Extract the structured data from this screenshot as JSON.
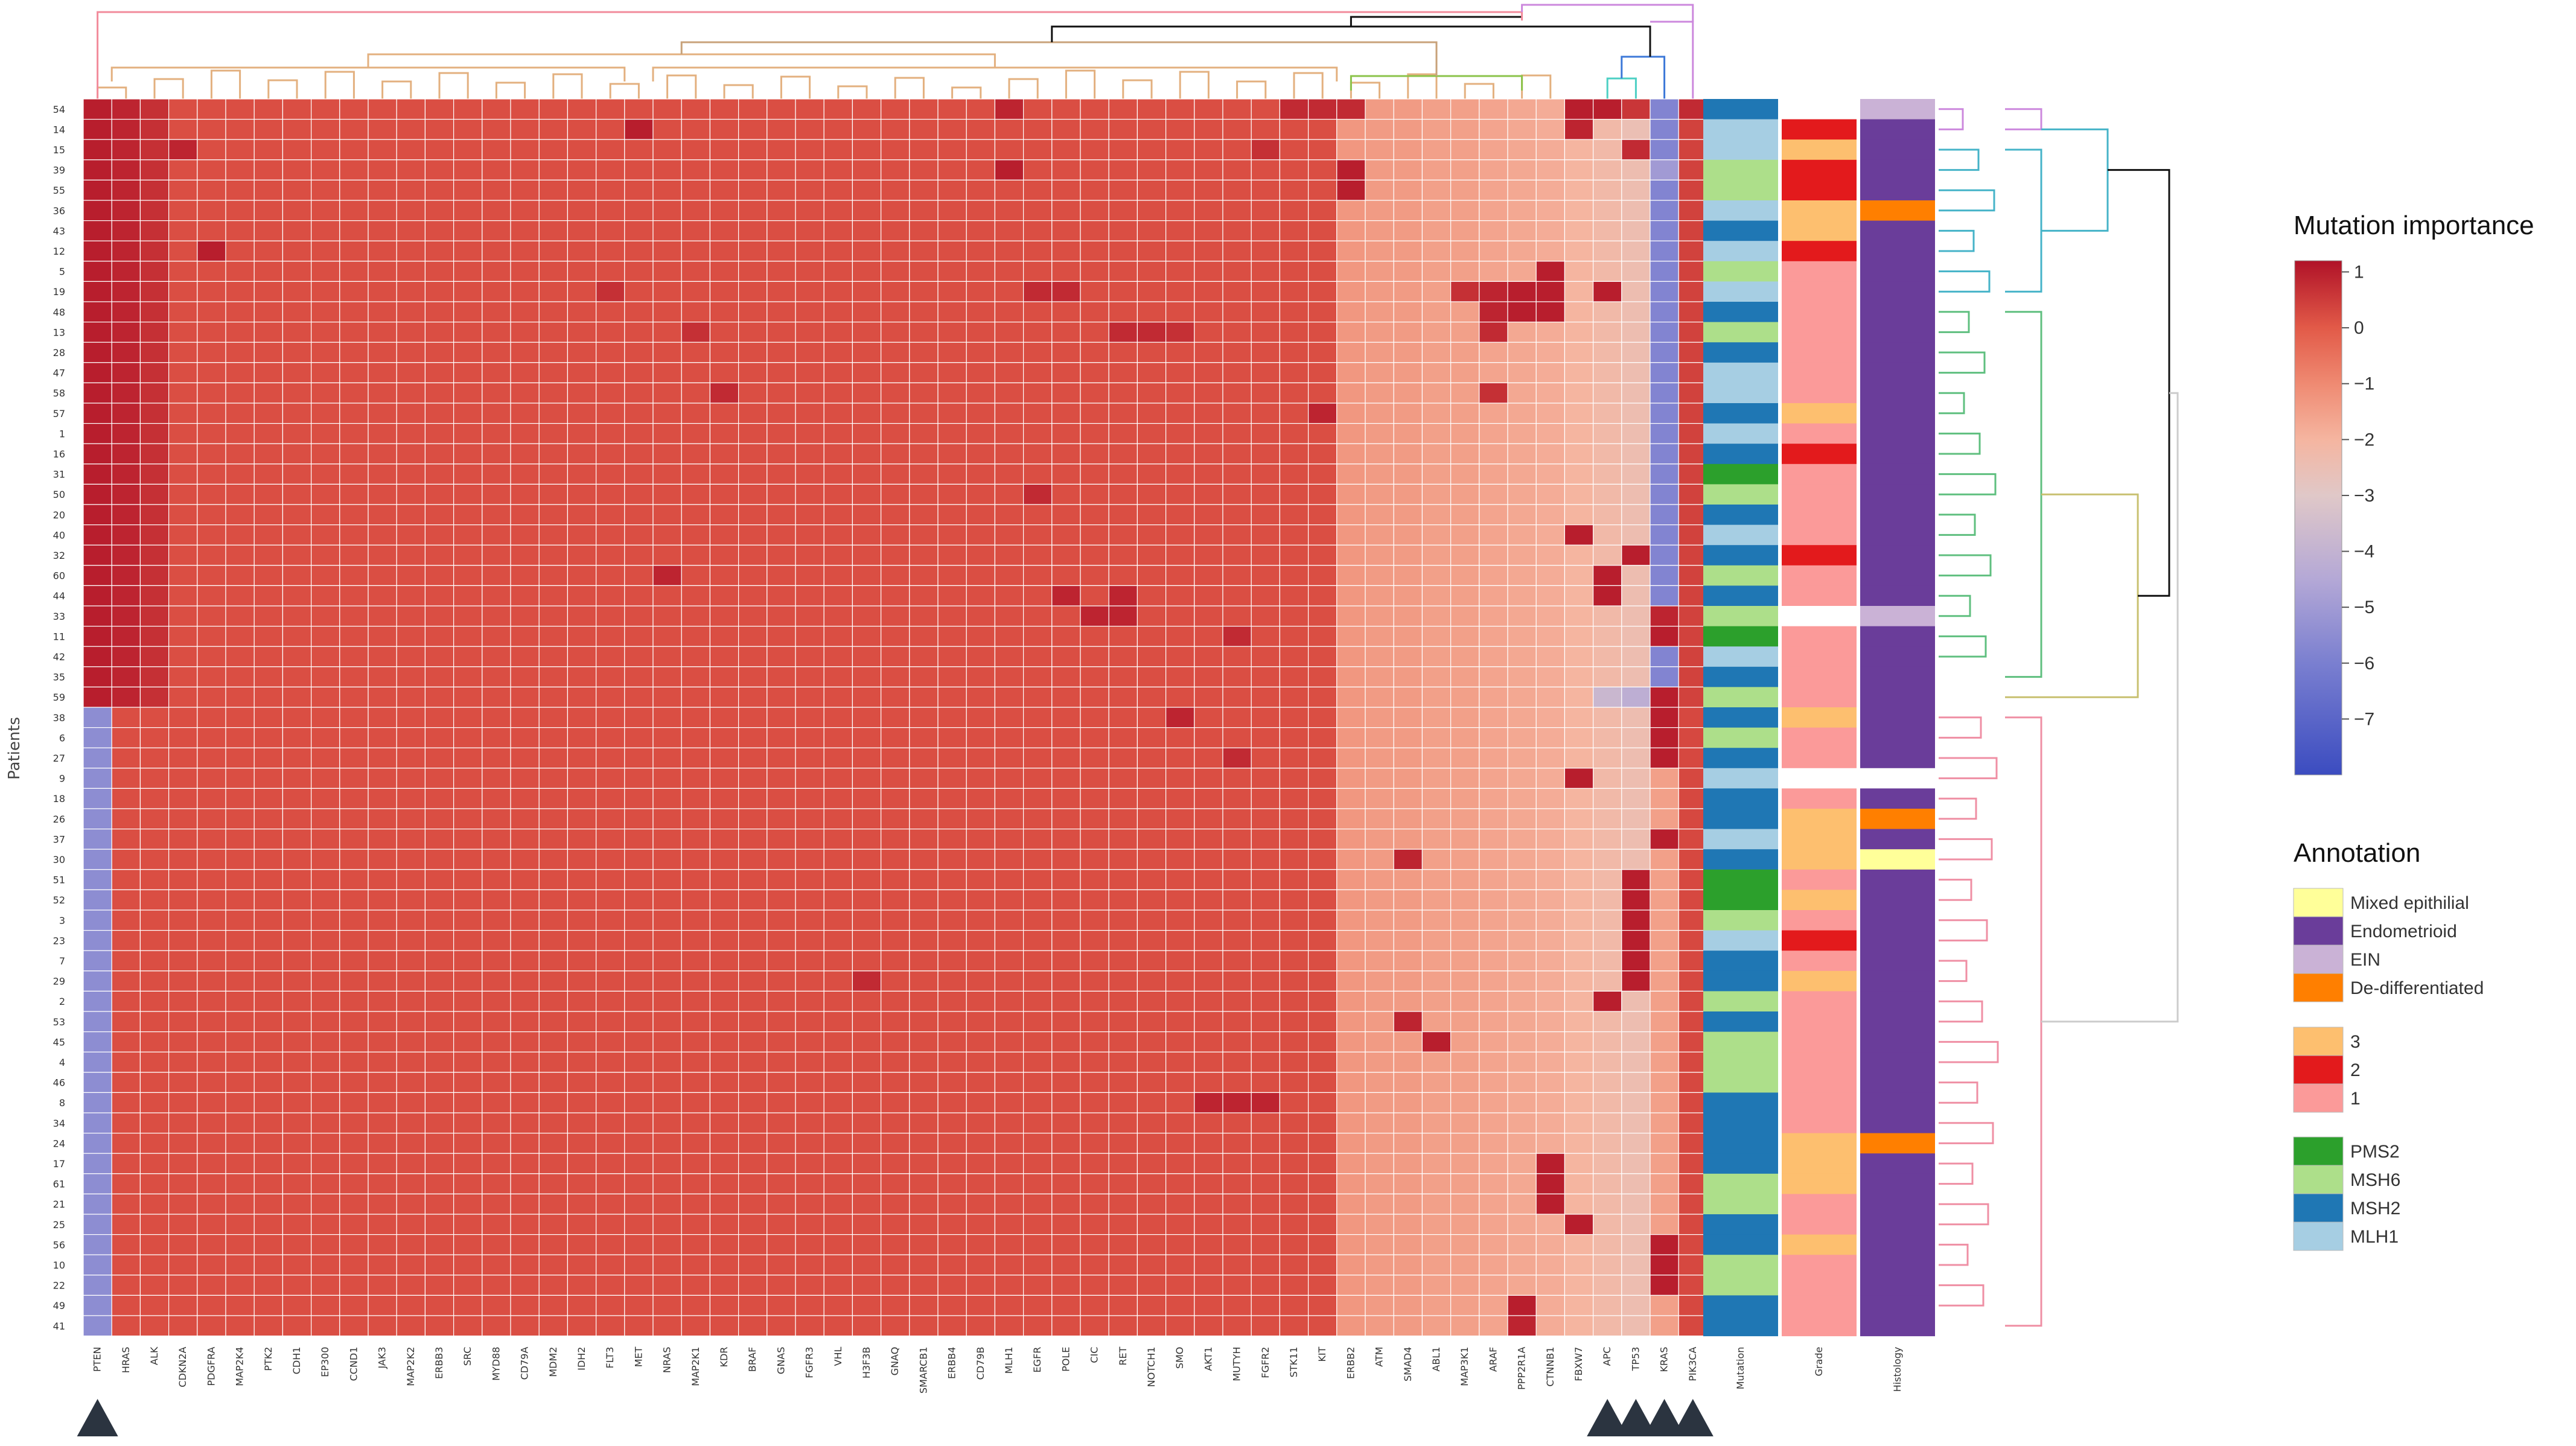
{
  "chart_data": {
    "type": "heatmap",
    "title": "",
    "ylabel": "Patients",
    "xlabel": "",
    "genes": [
      "PTEN",
      "HRAS",
      "ALK",
      "CDKN2A",
      "PDGFRA",
      "MAP2K4",
      "PTK2",
      "CDH1",
      "EP300",
      "CCND1",
      "JAK3",
      "MAP2K2",
      "ERBB3",
      "SRC",
      "MYD88",
      "CD79A",
      "MDM2",
      "IDH2",
      "FLT3",
      "MET",
      "NRAS",
      "MAP2K1",
      "KDR",
      "BRAF",
      "GNAS",
      "FGFR3",
      "VHL",
      "H3F3B",
      "GNAQ",
      "SMARCB1",
      "ERBB4",
      "CD79B",
      "MLH1",
      "EGFR",
      "POLE",
      "CIC",
      "RET",
      "NOTCH1",
      "SMO",
      "AKT1",
      "MUTYH",
      "FGFR2",
      "STK11",
      "KIT",
      "ERBB2",
      "ATM",
      "SMAD4",
      "ABL1",
      "MAP3K1",
      "ARAF",
      "PPP2R1A",
      "CTNNB1",
      "FBXW7",
      "APC",
      "TP53",
      "KRAS",
      "PIK3CA"
    ],
    "annotation_columns": [
      "Mutation",
      "Grade",
      "Histology"
    ],
    "patients": [
      "54",
      "14",
      "15",
      "39",
      "55",
      "36",
      "43",
      "12",
      "5",
      "19",
      "48",
      "13",
      "28",
      "47",
      "58",
      "57",
      "1",
      "16",
      "31",
      "50",
      "20",
      "40",
      "32",
      "60",
      "44",
      "33",
      "11",
      "42",
      "35",
      "59",
      "38",
      "6",
      "27",
      "9",
      "18",
      "26",
      "37",
      "30",
      "51",
      "52",
      "3",
      "23",
      "7",
      "29",
      "2",
      "53",
      "45",
      "4",
      "46",
      "8",
      "34",
      "24",
      "17",
      "61",
      "21",
      "25",
      "56",
      "10",
      "22",
      "49",
      "41"
    ],
    "colorbar": {
      "title": "Mutation importance",
      "range": [
        -8,
        1.2
      ],
      "ticks": [
        1,
        0,
        -1,
        -2,
        -3,
        -4,
        -5,
        -6,
        -7
      ],
      "tick_labels": [
        "1",
        "0",
        "−1",
        "−2",
        "−3",
        "−4",
        "−5",
        "−6",
        "−7"
      ],
      "colorscale": [
        [
          -8,
          "#3b4cc0"
        ],
        [
          -6,
          "#7a7fd0"
        ],
        [
          -4.5,
          "#b4a8d6"
        ],
        [
          -3,
          "#e0c8c8"
        ],
        [
          -2,
          "#f5b5a0"
        ],
        [
          -1,
          "#ef8a72"
        ],
        [
          0,
          "#e25a48"
        ],
        [
          1.2,
          "#b01228"
        ]
      ]
    },
    "colors": {
      "mutation": {
        "PMS2": "#2ca02c",
        "MSH6": "#addf8a",
        "MSH2": "#1f77b4",
        "MLH1": "#a6cee3"
      },
      "grade": {
        "3": "#fdbf6f",
        "2": "#e31a1c",
        "1": "#fb9a99"
      },
      "histology": {
        "Mixed epithilial": "#ffff99",
        "Endometrioid": "#6a3d9a",
        "EIN": "#cab2d6",
        "De-differentiated": "#ff7f00"
      },
      "missing": "#ffffff"
    },
    "mutation": [
      "MSH2",
      "MLH1",
      "MLH1",
      "MSH6",
      "MSH6",
      "MLH1",
      "MSH2",
      "MLH1",
      "MSH6",
      "MLH1",
      "MSH2",
      "MSH6",
      "MSH2",
      "MLH1",
      "MLH1",
      "MSH2",
      "MLH1",
      "MSH2",
      "PMS2",
      "MSH6",
      "MSH2",
      "MLH1",
      "MSH2",
      "MSH6",
      "MSH2",
      "MSH6",
      "PMS2",
      "MLH1",
      "MSH2",
      "MSH6",
      "MSH2",
      "MSH6",
      "MSH2",
      "MLH1",
      "MSH2",
      "MSH2",
      "MLH1",
      "MSH2",
      "PMS2",
      "PMS2",
      "MSH6",
      "MLH1",
      "MSH2",
      "MSH2",
      "MSH6",
      "MSH2",
      "MSH6",
      "MSH6",
      "MSH6",
      "MSH2",
      "MSH2",
      "MSH2",
      "MSH2",
      "MSH6",
      "MSH6",
      "MSH2",
      "MSH2",
      "MSH6",
      "MSH6",
      "MSH2",
      "MSH2"
    ],
    "grade": [
      "",
      "2",
      "3",
      "2",
      "2",
      "3",
      "3",
      "2",
      "1",
      "1",
      "1",
      "1",
      "1",
      "1",
      "1",
      "3",
      "1",
      "2",
      "1",
      "1",
      "1",
      "1",
      "2",
      "1",
      "1",
      "",
      "1",
      "1",
      "1",
      "1",
      "3",
      "1",
      "1",
      "",
      "1",
      "3",
      "3",
      "3",
      "1",
      "3",
      "1",
      "2",
      "1",
      "3",
      "1",
      "1",
      "1",
      "1",
      "1",
      "1",
      "1",
      "3",
      "3",
      "3",
      "1",
      "1",
      "3",
      "1",
      "1",
      "1",
      "1"
    ],
    "histology": [
      "EIN",
      "Endometrioid",
      "Endometrioid",
      "Endometrioid",
      "Endometrioid",
      "De-differentiated",
      "Endometrioid",
      "Endometrioid",
      "Endometrioid",
      "Endometrioid",
      "Endometrioid",
      "Endometrioid",
      "Endometrioid",
      "Endometrioid",
      "Endometrioid",
      "Endometrioid",
      "Endometrioid",
      "Endometrioid",
      "Endometrioid",
      "Endometrioid",
      "Endometrioid",
      "Endometrioid",
      "Endometrioid",
      "Endometrioid",
      "Endometrioid",
      "EIN",
      "Endometrioid",
      "Endometrioid",
      "Endometrioid",
      "Endometrioid",
      "Endometrioid",
      "Endometrioid",
      "Endometrioid",
      "",
      "Endometrioid",
      "De-differentiated",
      "Endometrioid",
      "Mixed epithilial",
      "Endometrioid",
      "Endometrioid",
      "Endometrioid",
      "Endometrioid",
      "Endometrioid",
      "Endometrioid",
      "Endometrioid",
      "Endometrioid",
      "Endometrioid",
      "Endometrioid",
      "Endometrioid",
      "Endometrioid",
      "Endometrioid",
      "De-differentiated",
      "Endometrioid",
      "Endometrioid",
      "Endometrioid",
      "Endometrioid",
      "Endometrioid",
      "Endometrioid",
      "Endometrioid",
      "Endometrioid",
      "Endometrioid"
    ],
    "values_note": "Rows follow 'patients'; columns follow 'genes'. Baseline estimated importance ~0 (red) with deviations listed per patient.",
    "baseline_value": 0.2,
    "column_baselines": {
      "ERBB2": -1.3,
      "ATM": -1.4,
      "SMAD4": -1.4,
      "ABL1": -1.5,
      "MAP3K1": -1.5,
      "ARAF": -1.6,
      "PPP2R1A": -1.7,
      "CTNNB1": -1.8,
      "FBXW7": -2.0,
      "APC": -2.2,
      "TP53": -2.4,
      "KRAS": -2.6,
      "PIK3CA": 0.0
    },
    "upper_block_patients": 30,
    "upper_block_values": {
      "PTEN": 1.0,
      "HRAS": 0.9,
      "ALK": 0.7,
      "KRAS": -5.8,
      "PIK3CA": 0.4
    },
    "lower_block_values": {
      "PTEN": -5.5,
      "HRAS": 0.2,
      "ALK": 0.2,
      "KRAS": -1.5,
      "PIK3CA": 0.3
    },
    "cell_highlights": [
      {
        "patient": "54",
        "gene": "FBXW7",
        "value": 1.0
      },
      {
        "patient": "54",
        "gene": "APC",
        "value": 1.0
      },
      {
        "patient": "54",
        "gene": "TP53",
        "value": 0.6
      },
      {
        "patient": "54",
        "gene": "PIK3CA",
        "value": 0.8
      },
      {
        "patient": "54",
        "gene": "MLH1",
        "value": 0.9
      },
      {
        "patient": "54",
        "gene": "STK11",
        "value": 0.8
      },
      {
        "patient": "54",
        "gene": "KIT",
        "value": 0.8
      },
      {
        "patient": "54",
        "gene": "ERBB2",
        "value": 0.8
      },
      {
        "patient": "14",
        "gene": "MET",
        "value": 1.0
      },
      {
        "patient": "14",
        "gene": "FBXW7",
        "value": 0.9
      },
      {
        "patient": "14",
        "gene": "TP53",
        "value": -2.5
      },
      {
        "patient": "15",
        "gene": "CDKN2A",
        "value": 0.9
      },
      {
        "patient": "15",
        "gene": "FGFR2",
        "value": 0.7
      },
      {
        "patient": "15",
        "gene": "TP53",
        "value": 0.8
      },
      {
        "patient": "39",
        "gene": "MLH1",
        "value": 1.0
      },
      {
        "patient": "39",
        "gene": "ERBB2",
        "value": 1.0
      },
      {
        "patient": "39",
        "gene": "KRAS",
        "value": -5.0
      },
      {
        "patient": "55",
        "gene": "ERBB2",
        "value": 1.0
      },
      {
        "patient": "12",
        "gene": "PDGFRA",
        "value": 1.0
      },
      {
        "patient": "5",
        "gene": "CTNNB1",
        "value": 1.0
      },
      {
        "patient": "19",
        "gene": "FLT3",
        "value": 0.7
      },
      {
        "patient": "19",
        "gene": "EGFR",
        "value": 0.8
      },
      {
        "patient": "19",
        "gene": "POLE",
        "value": 0.8
      },
      {
        "patient": "19",
        "gene": "MAP3K1",
        "value": 0.7
      },
      {
        "patient": "19",
        "gene": "ARAF",
        "value": 0.9
      },
      {
        "patient": "19",
        "gene": "PPP2R1A",
        "value": 1.0
      },
      {
        "patient": "19",
        "gene": "CTNNB1",
        "value": 1.0
      },
      {
        "patient": "19",
        "gene": "APC",
        "value": 1.0
      },
      {
        "patient": "48",
        "gene": "PPP2R1A",
        "value": 1.0
      },
      {
        "patient": "48",
        "gene": "CTNNB1",
        "value": 1.0
      },
      {
        "patient": "48",
        "gene": "ARAF",
        "value": 0.9
      },
      {
        "patient": "13",
        "gene": "RET",
        "value": 0.8
      },
      {
        "patient": "13",
        "gene": "NOTCH1",
        "value": 0.8
      },
      {
        "patient": "13",
        "gene": "SMO",
        "value": 0.7
      },
      {
        "patient": "13",
        "gene": "MAP2K1",
        "value": 0.7
      },
      {
        "patient": "13",
        "gene": "ARAF",
        "value": 0.8
      },
      {
        "patient": "58",
        "gene": "KDR",
        "value": 0.8
      },
      {
        "patient": "58",
        "gene": "ARAF",
        "value": 0.7
      },
      {
        "patient": "57",
        "gene": "KIT",
        "value": 0.9
      },
      {
        "patient": "50",
        "gene": "EGFR",
        "value": 0.8
      },
      {
        "patient": "40",
        "gene": "FBXW7",
        "value": 1.0
      },
      {
        "patient": "32",
        "gene": "TP53",
        "value": 1.0
      },
      {
        "patient": "60",
        "gene": "NRAS",
        "value": 0.9
      },
      {
        "patient": "60",
        "gene": "APC",
        "value": 1.0
      },
      {
        "patient": "44",
        "gene": "POLE",
        "value": 0.9
      },
      {
        "patient": "44",
        "gene": "RET",
        "value": 0.9
      },
      {
        "patient": "44",
        "gene": "APC",
        "value": 1.0
      },
      {
        "patient": "33",
        "gene": "CIC",
        "value": 0.9
      },
      {
        "patient": "33",
        "gene": "RET",
        "value": 0.9
      },
      {
        "patient": "33",
        "gene": "KRAS",
        "value": 0.9
      },
      {
        "patient": "11",
        "gene": "MUTYH",
        "value": 0.8
      },
      {
        "patient": "11",
        "gene": "KRAS",
        "value": 1.0
      },
      {
        "patient": "59",
        "gene": "KRAS",
        "value": 1.0
      },
      {
        "patient": "59",
        "gene": "APC",
        "value": -3.8
      },
      {
        "patient": "59",
        "gene": "TP53",
        "value": -4.2
      },
      {
        "patient": "38",
        "gene": "SMO",
        "value": 0.9
      },
      {
        "patient": "38",
        "gene": "KRAS",
        "value": 1.0
      },
      {
        "patient": "6",
        "gene": "KRAS",
        "value": 1.0
      },
      {
        "patient": "27",
        "gene": "KRAS",
        "value": 1.0
      },
      {
        "patient": "27",
        "gene": "MUTYH",
        "value": 0.8
      },
      {
        "patient": "9",
        "gene": "FBXW7",
        "value": 1.0
      },
      {
        "patient": "37",
        "gene": "KRAS",
        "value": 1.0
      },
      {
        "patient": "30",
        "gene": "SMAD4",
        "value": 0.9
      },
      {
        "patient": "51",
        "gene": "TP53",
        "value": 1.0
      },
      {
        "patient": "52",
        "gene": "TP53",
        "value": 1.0
      },
      {
        "patient": "3",
        "gene": "TP53",
        "value": 1.0
      },
      {
        "patient": "23",
        "gene": "TP53",
        "value": 1.0
      },
      {
        "patient": "7",
        "gene": "TP53",
        "value": 1.0
      },
      {
        "patient": "29",
        "gene": "TP53",
        "value": 1.0
      },
      {
        "patient": "29",
        "gene": "H3F3B",
        "value": 0.8
      },
      {
        "patient": "2",
        "gene": "APC",
        "value": 1.0
      },
      {
        "patient": "53",
        "gene": "SMAD4",
        "value": 0.9
      },
      {
        "patient": "45",
        "gene": "ABL1",
        "value": 1.0
      },
      {
        "patient": "8",
        "gene": "AKT1",
        "value": 0.9
      },
      {
        "patient": "8",
        "gene": "MUTYH",
        "value": 0.9
      },
      {
        "patient": "8",
        "gene": "FGFR2",
        "value": 0.9
      },
      {
        "patient": "17",
        "gene": "CTNNB1",
        "value": 1.0
      },
      {
        "patient": "61",
        "gene": "CTNNB1",
        "value": 1.0
      },
      {
        "patient": "21",
        "gene": "CTNNB1",
        "value": 1.0
      },
      {
        "patient": "25",
        "gene": "FBXW7",
        "value": 1.0
      },
      {
        "patient": "56",
        "gene": "KRAS",
        "value": 1.0
      },
      {
        "patient": "10",
        "gene": "KRAS",
        "value": 1.0
      },
      {
        "patient": "22",
        "gene": "KRAS",
        "value": 1.0
      },
      {
        "patient": "49",
        "gene": "PPP2R1A",
        "value": 1.0
      },
      {
        "patient": "41",
        "gene": "PPP2R1A",
        "value": 0.9
      }
    ],
    "marked_genes": [
      "PTEN",
      "APC",
      "TP53",
      "KRAS",
      "PIK3CA"
    ]
  },
  "legend": {
    "annotation_title": "Annotation",
    "histology_items": [
      "Mixed epithilial",
      "Endometrioid",
      "EIN",
      "De-differentiated"
    ],
    "grade_items": [
      "3",
      "2",
      "1"
    ],
    "mutation_items": [
      "PMS2",
      "MSH6",
      "MSH2",
      "MLH1"
    ]
  }
}
